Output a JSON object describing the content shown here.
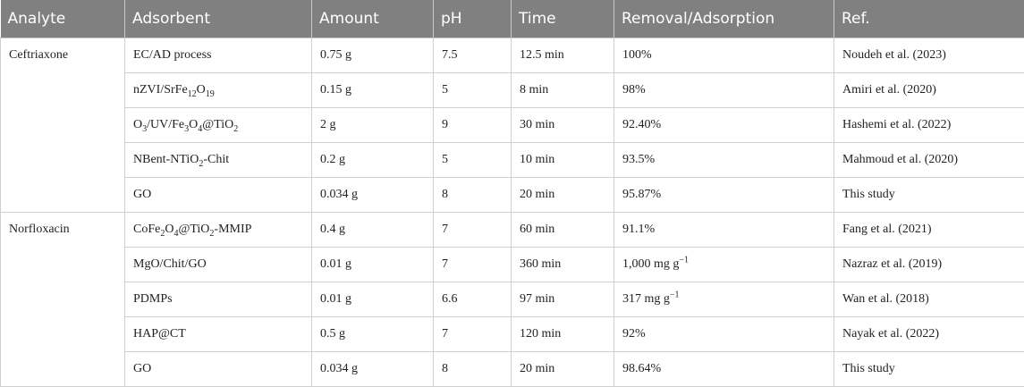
{
  "table": {
    "headers": [
      "Analyte",
      "Adsorbent",
      "Amount",
      "pH",
      "Time",
      "Removal/Adsorption",
      "Ref."
    ],
    "groups": [
      {
        "analyte": "Ceftriaxone",
        "rows": [
          {
            "adsorbent": "EC/AD process",
            "amount": "0.75 g",
            "ph": "7.5",
            "time": "12.5 min",
            "removal": "100%",
            "ref": "Noudeh et al. (2023)"
          },
          {
            "adsorbent": "nZVI/SrFe12O19",
            "amount": "0.15 g",
            "ph": "5",
            "time": "8 min",
            "removal": "98%",
            "ref": "Amiri et al. (2020)"
          },
          {
            "adsorbent": "O3/UV/Fe3O4@TiO2",
            "amount": "2 g",
            "ph": "9",
            "time": "30 min",
            "removal": "92.40%",
            "ref": "Hashemi et al. (2022)"
          },
          {
            "adsorbent": "NBent-NTiO2-Chit",
            "amount": "0.2 g",
            "ph": "5",
            "time": "10 min",
            "removal": "93.5%",
            "ref": "Mahmoud et al. (2020)"
          },
          {
            "adsorbent": "GO",
            "amount": "0.034 g",
            "ph": "8",
            "time": "20 min",
            "removal": "95.87%",
            "ref": "This study"
          }
        ]
      },
      {
        "analyte": "Norfloxacin",
        "rows": [
          {
            "adsorbent": "CoFe2O4@TiO2-MMIP",
            "amount": "0.4 g",
            "ph": "7",
            "time": "60 min",
            "removal": "91.1%",
            "ref": "Fang et al. (2021)"
          },
          {
            "adsorbent": "MgO/Chit/GO",
            "amount": "0.01 g",
            "ph": "7",
            "time": "360 min",
            "removal": "1,000 mg g−1",
            "ref": "Nazraz et al. (2019)"
          },
          {
            "adsorbent": "PDMPs",
            "amount": "0.01 g",
            "ph": "6.6",
            "time": "97 min",
            "removal": "317 mg g−1",
            "ref": "Wan et al. (2018)"
          },
          {
            "adsorbent": "HAP@CT",
            "amount": "0.5 g",
            "ph": "7",
            "time": "120 min",
            "removal": "92%",
            "ref": "Nayak et al. (2022)"
          },
          {
            "adsorbent": "GO",
            "amount": "0.034 g",
            "ph": "8",
            "time": "20 min",
            "removal": "98.64%",
            "ref": "This study"
          }
        ]
      }
    ]
  }
}
